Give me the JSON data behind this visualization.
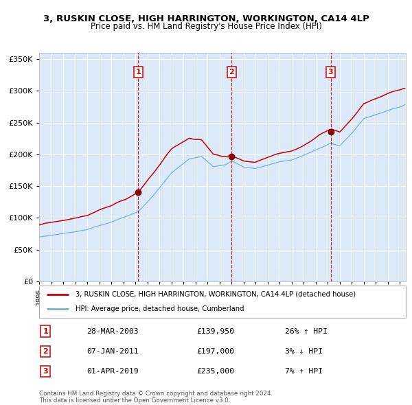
{
  "title_line1": "3, RUSKIN CLOSE, HIGH HARRINGTON, WORKINGTON, CA14 4LP",
  "title_line2": "Price paid vs. HM Land Registry's House Price Index (HPI)",
  "legend_property": "3, RUSKIN CLOSE, HIGH HARRINGTON, WORKINGTON, CA14 4LP (detached house)",
  "legend_hpi": "HPI: Average price, detached house, Cumberland",
  "transactions": [
    {
      "num": 1,
      "date": "28-MAR-2003",
      "price": 139950,
      "pct": "26%",
      "dir": "↑"
    },
    {
      "num": 2,
      "date": "07-JAN-2011",
      "price": 197000,
      "pct": "3%",
      "dir": "↓"
    },
    {
      "num": 3,
      "date": "01-APR-2019",
      "price": 235000,
      "pct": "7%",
      "dir": "↑"
    }
  ],
  "transaction_dates_decimal": [
    2003.24,
    2011.02,
    2019.25
  ],
  "transaction_prices": [
    139950,
    197000,
    235000
  ],
  "footnote": "Contains HM Land Registry data © Crown copyright and database right 2024.\nThis data is licensed under the Open Government Licence v3.0.",
  "bg_color": "#dce9f8",
  "line_color_property": "#cc0000",
  "line_color_hpi": "#7ab0d4",
  "marker_color": "#880000",
  "vline_color": "#cc0000",
  "box_color": "#cc0000",
  "ylim": [
    0,
    360000
  ],
  "yticks": [
    0,
    50000,
    100000,
    150000,
    200000,
    250000,
    300000,
    350000
  ],
  "xlim_start": 1995.0,
  "xlim_end": 2025.5
}
